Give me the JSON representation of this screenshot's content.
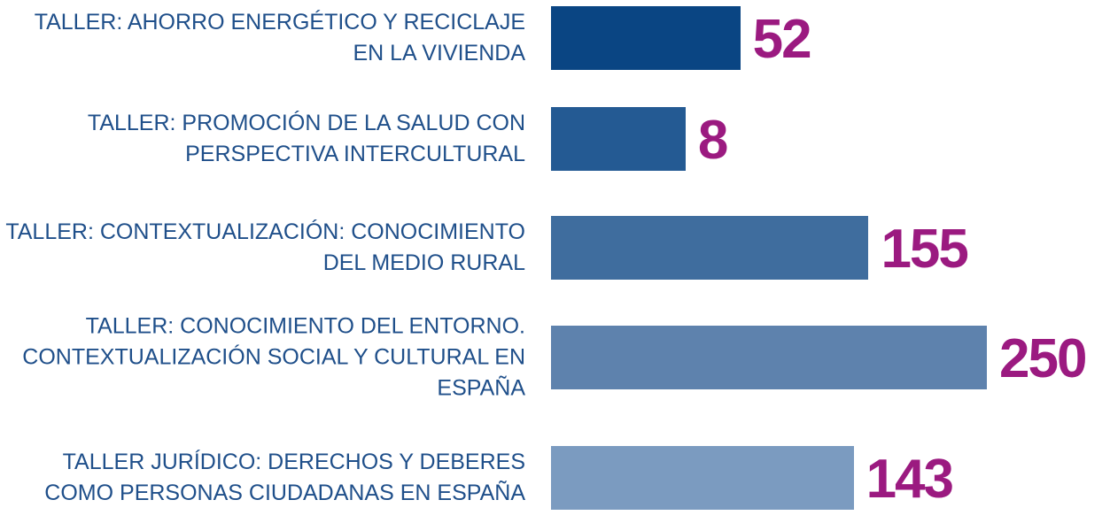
{
  "chart_data": {
    "type": "barh",
    "categories": [
      "TALLER: AHORRO ENERGÉTICO Y RECICLAJE EN LA VIVIENDA",
      "TALLER: PROMOCIÓN DE LA SALUD CON PERSPECTIVA INTERCULTURAL",
      "TALLER: CONTEXTUALIZACIÓN: CONOCIMIENTO DEL MEDIO RURAL",
      "TALLER: CONOCIMIENTO DEL ENTORNO. CONTEXTUALIZACIÓN SOCIAL Y CULTURAL EN ESPAÑA",
      "TALLER JURÍDICO: DERECHOS Y DEBERES COMO PERSONAS CIUDADANAS EN ESPAÑA"
    ],
    "values": [
      52,
      8,
      155,
      250,
      143
    ],
    "colors": [
      "#0a4583",
      "#245a93",
      "#3f6d9e",
      "#5e82ad",
      "#7b9bc0"
    ],
    "xlim": [
      -100,
      250
    ]
  }
}
